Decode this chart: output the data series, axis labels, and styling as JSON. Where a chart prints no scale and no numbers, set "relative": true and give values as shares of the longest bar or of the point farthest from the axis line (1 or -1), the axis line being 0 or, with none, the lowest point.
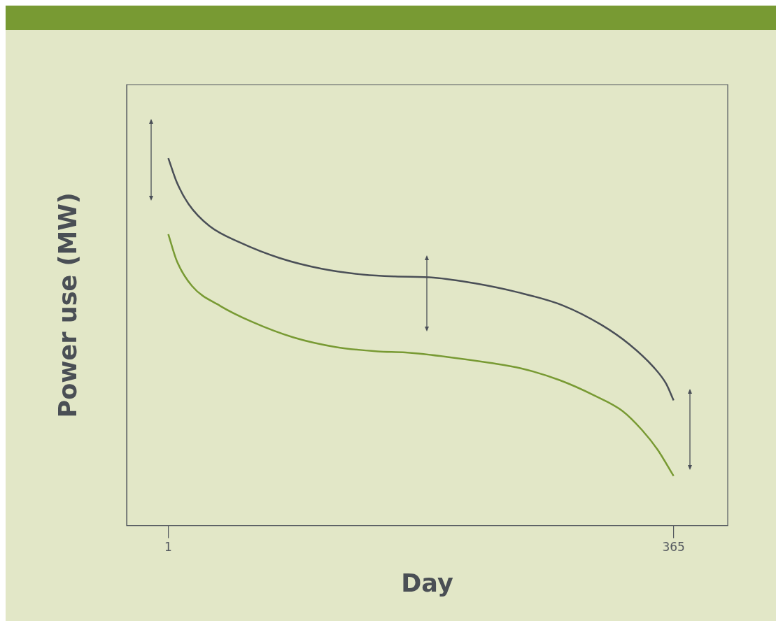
{
  "chart_data": {
    "type": "line",
    "xlabel": "Day",
    "ylabel": "Power use (MW)",
    "relative": true,
    "xlim": [
      -29,
      404
    ],
    "xticks": [
      1,
      365
    ],
    "grid": false,
    "legend": false,
    "marker": "none",
    "series": [
      {
        "color": "#4a4f57",
        "x": [
          1,
          7.05,
          15.6,
          30.7,
          53.4,
          81.2,
          111.4,
          141.7,
          164.3,
          192.1,
          222.3,
          252.6,
          285.3,
          313.1,
          333.2,
          350.9,
          359.5,
          365
        ],
        "values": [
          1,
          0.935,
          0.875,
          0.815,
          0.769,
          0.728,
          0.699,
          0.683,
          0.678,
          0.675,
          0.659,
          0.635,
          0.599,
          0.546,
          0.493,
          0.43,
          0.387,
          0.341
        ]
      },
      {
        "color": "#789a33",
        "x": [
          1,
          7.05,
          18.1,
          38.3,
          61,
          91.2,
          121.5,
          151.7,
          171.9,
          202.2,
          232.4,
          255.1,
          282.8,
          308,
          328.2,
          342.3,
          353.4,
          365
        ],
        "values": [
          0.793,
          0.721,
          0.652,
          0.598,
          0.555,
          0.512,
          0.486,
          0.474,
          0.471,
          0.459,
          0.443,
          0.428,
          0.396,
          0.354,
          0.312,
          0.26,
          0.207,
          0.135
        ]
      }
    ]
  }
}
